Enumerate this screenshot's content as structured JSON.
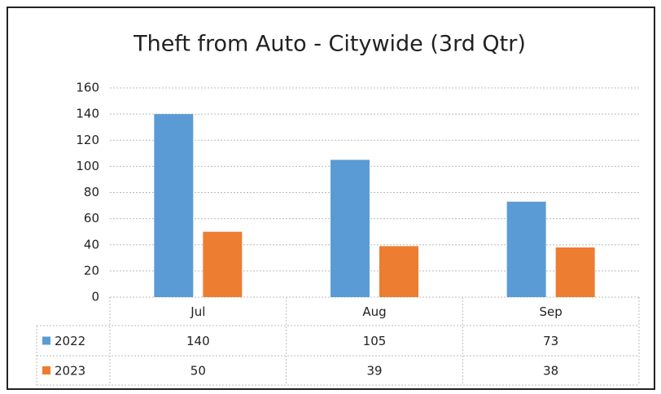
{
  "chart_data": {
    "type": "bar",
    "title": "Theft from Auto - Citywide (3rd Qtr)",
    "categories": [
      "Jul",
      "Aug",
      "Sep"
    ],
    "series": [
      {
        "name": "2022",
        "color": "#5b9bd5",
        "values": [
          140,
          105,
          73
        ]
      },
      {
        "name": "2023",
        "color": "#ed7d31",
        "values": [
          50,
          39,
          38
        ]
      }
    ],
    "ylim": [
      0,
      160
    ],
    "yticks": [
      0,
      20,
      40,
      60,
      80,
      100,
      120,
      140,
      160
    ],
    "grid": true,
    "data_table": true
  }
}
